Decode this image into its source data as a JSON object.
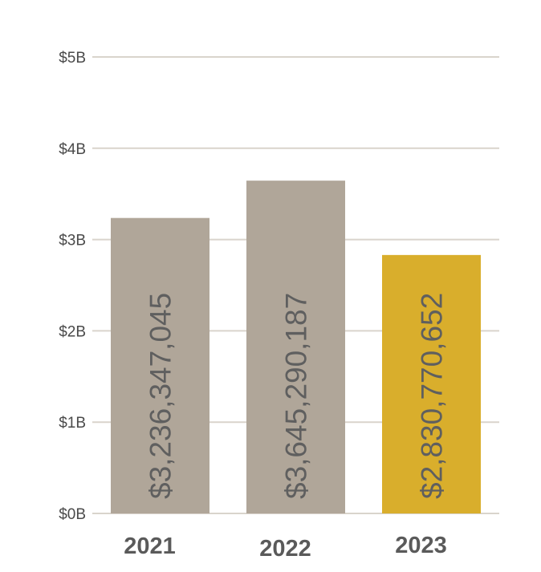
{
  "chart_data": {
    "type": "bar",
    "categories": [
      "2021",
      "2022",
      "2023"
    ],
    "values": [
      3236347045,
      3645290187,
      2830770652
    ],
    "value_labels": [
      "$3,236,347,045",
      "$3,645,290,187",
      "$2,830,770,652"
    ],
    "bar_colors": [
      "#b0a699",
      "#b0a699",
      "#d9ae2c"
    ],
    "ylim": [
      0,
      5000000000
    ],
    "yticks": [
      0,
      1000000000,
      2000000000,
      3000000000,
      4000000000,
      5000000000
    ],
    "ytick_labels": [
      "$0B",
      "$1B",
      "$2B",
      "$3B",
      "$4B",
      "$5B"
    ],
    "grid": true,
    "grid_color": "#d9d4cc",
    "title": "",
    "xlabel": "",
    "ylabel": ""
  }
}
